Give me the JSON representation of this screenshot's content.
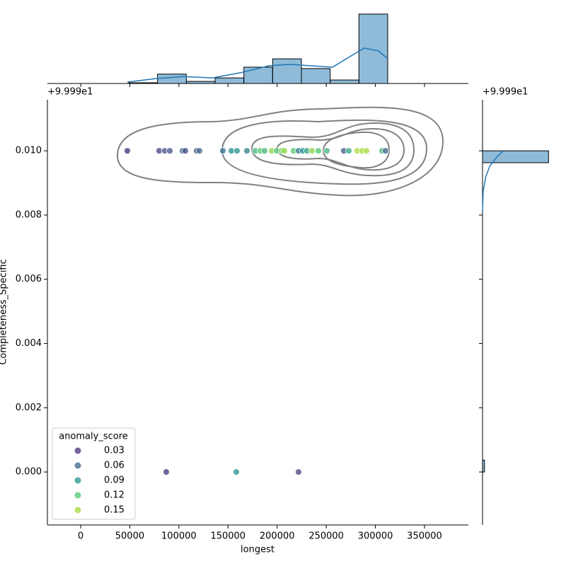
{
  "chart_data": {
    "type": "scatter",
    "x_label": "longest",
    "y_label": "Completeness_Specific",
    "y_offset": "+9.999e1",
    "x": [
      47530,
      79940,
      85700,
      90740,
      103700,
      106580,
      118100,
      120980,
      144750,
      153390,
      159150,
      169230,
      177870,
      182910,
      187230,
      194430,
      199480,
      204520,
      207400,
      216760,
      221800,
      226120,
      230440,
      235480,
      241960,
      250600,
      267890,
      272930,
      281570,
      286610,
      290930,
      306780,
      310380,
      87140,
      158430,
      221800
    ],
    "y": [
      0.01,
      0.01,
      0.01,
      0.01,
      0.01,
      0.01,
      0.01,
      0.01,
      0.01,
      0.01,
      0.01,
      0.01,
      0.01,
      0.01,
      0.01,
      0.01,
      0.01,
      0.01,
      0.01,
      0.01,
      0.01,
      0.01,
      0.01,
      0.01,
      0.01,
      0.01,
      0.01,
      0.01,
      0.01,
      0.01,
      0.01,
      0.01,
      0.01,
      0,
      0,
      0
    ],
    "hue": [
      0.02,
      0.04,
      0.05,
      0.05,
      0.06,
      0.05,
      0.05,
      0.06,
      0.07,
      0.09,
      0.09,
      0.08,
      0.11,
      0.12,
      0.11,
      0.14,
      0.12,
      0.13,
      0.14,
      0.12,
      0.07,
      0.09,
      0.1,
      0.14,
      0.12,
      0.11,
      0.05,
      0.1,
      0.15,
      0.16,
      0.15,
      0.11,
      0.06,
      0.02,
      0.09,
      0.04
    ],
    "legend": {
      "title": "anomaly_score",
      "position": "lower left",
      "entries": [
        {
          "label": "0.03",
          "value": 0.03,
          "color": "#472d7b"
        },
        {
          "label": "0.06",
          "value": 0.06,
          "color": "#3b628b"
        },
        {
          "label": "0.09",
          "value": 0.09,
          "color": "#21918c"
        },
        {
          "label": "0.12",
          "value": 0.12,
          "color": "#4fc56a"
        },
        {
          "label": "0.15",
          "value": 0.15,
          "color": "#a6db35"
        }
      ]
    },
    "xlim": [
      -33850,
      394650
    ],
    "xticks": [
      0,
      50000,
      100000,
      150000,
      200000,
      250000,
      300000,
      350000
    ],
    "ylim": [
      -0.00165,
      0.01159
    ],
    "yticks": [
      {
        "value": 0,
        "label": "0.000"
      },
      {
        "value": 0.002,
        "label": "0.002"
      },
      {
        "value": 0.004,
        "label": "0.004"
      },
      {
        "value": 0.006,
        "label": "0.006"
      },
      {
        "value": 0.008,
        "label": "0.008"
      },
      {
        "value": 0.01,
        "label": "0.010"
      }
    ],
    "marginal_x": {
      "type": "histogram",
      "color": "#1f77b4",
      "bins": [
        48970,
        78256,
        107542,
        136828,
        166114,
        195400,
        224686,
        253972,
        283258,
        312544
      ],
      "counts": [
        0.2,
        2.7,
        0.6,
        1.6,
        4.7,
        7.1,
        4.3,
        1.0,
        20
      ],
      "ylim": [
        0,
        21
      ],
      "kde_x": [
        47530,
        76340,
        105140,
        133950,
        162750,
        191560,
        213160,
        234770,
        256370,
        274380,
        288780,
        303180,
        311820
      ],
      "kde_y": [
        0.4,
        1.4,
        2.0,
        1.6,
        3.1,
        5.1,
        5.5,
        5.1,
        4.7,
        7.8,
        10.2,
        9.4,
        7.3
      ]
    },
    "marginal_y": {
      "type": "histogram",
      "color": "#1f77b4",
      "bins": [
        0,
        0.00037,
        0.00074,
        0.00111,
        0.00148,
        0.00185,
        0.00222,
        0.00259,
        0.00296,
        0.00333,
        0.0037,
        0.00407,
        0.00444,
        0.00481,
        0.00519,
        0.00556,
        0.00593,
        0.0063,
        0.00667,
        0.00704,
        0.00741,
        0.00778,
        0.00815,
        0.00852,
        0.00889,
        0.00926,
        0.00963,
        0.01
      ],
      "counts": [
        0.6,
        0,
        0,
        0,
        0,
        0,
        0,
        0,
        0,
        0,
        0,
        0,
        0,
        0,
        0,
        0,
        0,
        0,
        0,
        0,
        0,
        0,
        0,
        0,
        0,
        0,
        20
      ],
      "xlim": [
        0,
        21
      ],
      "kde_y": [
        0.0081,
        0.00874,
        0.0092,
        0.00952,
        0.0098,
        0.01
      ],
      "kde_x": [
        0,
        0.2,
        1.0,
        2.2,
        4.3,
        6.3
      ]
    }
  }
}
